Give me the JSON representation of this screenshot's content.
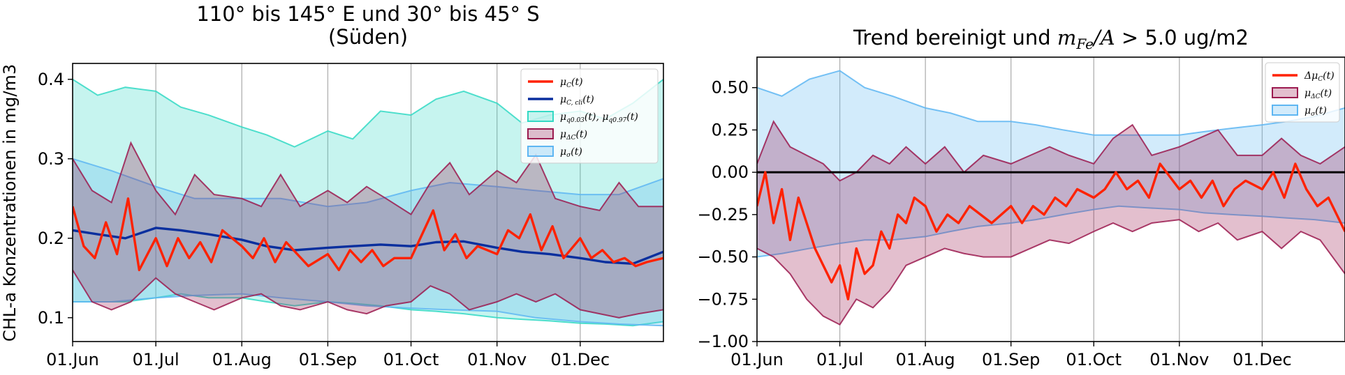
{
  "chart_data": [
    {
      "type": "line",
      "title_line1": "110° bis 145° E und 30° bis 45° S",
      "title_line2": "(Süden)",
      "ylabel": "CHL-a Konzentrationen in mg/m3",
      "xlabel": "",
      "x_start": "2019-06-01",
      "x_end": "2019-12-31",
      "ylim": [
        0.07,
        0.42
      ],
      "yticks": [
        0.1,
        0.2,
        0.3,
        0.4
      ],
      "ytick_labels": [
        "0.1",
        "0.2",
        "0.3",
        "0.4"
      ],
      "xticks": [
        "2019-06-01",
        "2019-07-01",
        "2019-08-01",
        "2019-09-01",
        "2019-10-01",
        "2019-11-01",
        "2019-12-01"
      ],
      "xtick_labels": [
        "01.Jun",
        "01.Jul",
        "01.Aug",
        "01.Sep",
        "01.Oct",
        "01.Nov",
        "01.Dec"
      ],
      "grid": "x",
      "legend_placement": "top-right",
      "legend": [
        {
          "main": "μ",
          "sub": "C",
          "tail": "(t)",
          "kind": "line",
          "color": "#ff2200"
        },
        {
          "main": "μ",
          "sub": "C, cli",
          "tail": "(t)",
          "kind": "line",
          "color": "#0a2f9e"
        },
        {
          "main": "μ",
          "sub": "q0.03",
          "tail": "(t), μ",
          "sub2": "q0.97",
          "tail2": "(t)",
          "kind": "patch",
          "color": "#33d9c4"
        },
        {
          "main": "μ",
          "sub": "ΔC",
          "tail": "(t)",
          "kind": "patch",
          "color": "#9b1a4f"
        },
        {
          "main": "μ",
          "sub": "σ",
          "tail": "(t)",
          "kind": "patch",
          "color": "#5eb6f2"
        }
      ],
      "series": [
        {
          "id": "q",
          "kind": "band",
          "color": "#33d9c4",
          "x": [
            "2019-06-01",
            "2019-06-10",
            "2019-06-20",
            "2019-07-01",
            "2019-07-10",
            "2019-07-20",
            "2019-08-01",
            "2019-08-10",
            "2019-08-20",
            "2019-09-01",
            "2019-09-10",
            "2019-09-20",
            "2019-10-01",
            "2019-10-10",
            "2019-10-20",
            "2019-11-01",
            "2019-11-10",
            "2019-11-20",
            "2019-12-01",
            "2019-12-10",
            "2019-12-20",
            "2019-12-31"
          ],
          "lower": [
            0.12,
            0.12,
            0.12,
            0.125,
            0.13,
            0.125,
            0.125,
            0.12,
            0.115,
            0.12,
            0.118,
            0.115,
            0.11,
            0.108,
            0.105,
            0.1,
            0.098,
            0.096,
            0.093,
            0.092,
            0.09,
            0.095
          ],
          "upper": [
            0.4,
            0.38,
            0.39,
            0.385,
            0.365,
            0.355,
            0.34,
            0.33,
            0.315,
            0.335,
            0.325,
            0.36,
            0.355,
            0.375,
            0.385,
            0.37,
            0.345,
            0.355,
            0.36,
            0.35,
            0.37,
            0.4
          ]
        },
        {
          "id": "sigma",
          "kind": "band",
          "color": "#5eb6f2",
          "x": [
            "2019-06-01",
            "2019-06-15",
            "2019-07-01",
            "2019-07-15",
            "2019-08-01",
            "2019-08-15",
            "2019-09-01",
            "2019-09-15",
            "2019-10-01",
            "2019-10-15",
            "2019-11-01",
            "2019-11-15",
            "2019-12-01",
            "2019-12-15",
            "2019-12-31"
          ],
          "lower": [
            0.12,
            0.12,
            0.125,
            0.128,
            0.13,
            0.125,
            0.12,
            0.115,
            0.112,
            0.11,
            0.108,
            0.1,
            0.095,
            0.092,
            0.09
          ],
          "upper": [
            0.3,
            0.285,
            0.265,
            0.25,
            0.25,
            0.25,
            0.24,
            0.245,
            0.26,
            0.27,
            0.265,
            0.26,
            0.255,
            0.255,
            0.275
          ]
        },
        {
          "id": "dc",
          "kind": "band",
          "color": "#9b1a4f",
          "x": [
            "2019-06-01",
            "2019-06-08",
            "2019-06-15",
            "2019-06-22",
            "2019-07-01",
            "2019-07-08",
            "2019-07-15",
            "2019-07-22",
            "2019-08-01",
            "2019-08-08",
            "2019-08-15",
            "2019-08-22",
            "2019-09-01",
            "2019-09-08",
            "2019-09-15",
            "2019-09-22",
            "2019-10-01",
            "2019-10-08",
            "2019-10-15",
            "2019-10-22",
            "2019-11-01",
            "2019-11-08",
            "2019-11-15",
            "2019-11-22",
            "2019-12-01",
            "2019-12-08",
            "2019-12-15",
            "2019-12-22",
            "2019-12-31"
          ],
          "lower": [
            0.16,
            0.12,
            0.11,
            0.12,
            0.15,
            0.13,
            0.12,
            0.11,
            0.125,
            0.13,
            0.115,
            0.11,
            0.12,
            0.11,
            0.105,
            0.115,
            0.12,
            0.14,
            0.13,
            0.11,
            0.12,
            0.13,
            0.12,
            0.13,
            0.11,
            0.105,
            0.1,
            0.105,
            0.11
          ],
          "upper": [
            0.3,
            0.26,
            0.245,
            0.32,
            0.26,
            0.23,
            0.28,
            0.255,
            0.25,
            0.24,
            0.28,
            0.24,
            0.26,
            0.245,
            0.265,
            0.25,
            0.23,
            0.27,
            0.295,
            0.255,
            0.285,
            0.27,
            0.305,
            0.25,
            0.24,
            0.235,
            0.27,
            0.24,
            0.24
          ]
        },
        {
          "id": "mu_cli",
          "kind": "line",
          "color": "#0a2f9e",
          "x": [
            "2019-06-01",
            "2019-06-10",
            "2019-06-20",
            "2019-07-01",
            "2019-07-10",
            "2019-07-20",
            "2019-08-01",
            "2019-08-10",
            "2019-08-20",
            "2019-09-01",
            "2019-09-10",
            "2019-09-20",
            "2019-10-01",
            "2019-10-10",
            "2019-10-20",
            "2019-11-01",
            "2019-11-10",
            "2019-11-20",
            "2019-12-01",
            "2019-12-10",
            "2019-12-20",
            "2019-12-31"
          ],
          "y": [
            0.21,
            0.205,
            0.2,
            0.213,
            0.21,
            0.205,
            0.198,
            0.19,
            0.185,
            0.188,
            0.19,
            0.192,
            0.19,
            0.195,
            0.196,
            0.188,
            0.183,
            0.18,
            0.175,
            0.17,
            0.168,
            0.183
          ]
        },
        {
          "id": "mu_c",
          "kind": "line",
          "color": "#ff2200",
          "x": [
            "2019-06-01",
            "2019-06-05",
            "2019-06-09",
            "2019-06-13",
            "2019-06-17",
            "2019-06-21",
            "2019-06-25",
            "2019-07-01",
            "2019-07-05",
            "2019-07-09",
            "2019-07-13",
            "2019-07-17",
            "2019-07-21",
            "2019-07-25",
            "2019-08-01",
            "2019-08-05",
            "2019-08-09",
            "2019-08-13",
            "2019-08-17",
            "2019-08-21",
            "2019-08-25",
            "2019-09-01",
            "2019-09-05",
            "2019-09-09",
            "2019-09-13",
            "2019-09-17",
            "2019-09-21",
            "2019-09-25",
            "2019-10-01",
            "2019-10-05",
            "2019-10-09",
            "2019-10-13",
            "2019-10-17",
            "2019-10-21",
            "2019-10-25",
            "2019-11-01",
            "2019-11-05",
            "2019-11-09",
            "2019-11-13",
            "2019-11-17",
            "2019-11-21",
            "2019-11-25",
            "2019-12-01",
            "2019-12-05",
            "2019-12-09",
            "2019-12-13",
            "2019-12-17",
            "2019-12-21",
            "2019-12-25",
            "2019-12-31"
          ],
          "y": [
            0.24,
            0.19,
            0.175,
            0.22,
            0.18,
            0.25,
            0.16,
            0.2,
            0.165,
            0.2,
            0.175,
            0.195,
            0.17,
            0.21,
            0.19,
            0.175,
            0.2,
            0.17,
            0.195,
            0.18,
            0.165,
            0.18,
            0.16,
            0.185,
            0.17,
            0.185,
            0.165,
            0.175,
            0.175,
            0.205,
            0.235,
            0.185,
            0.205,
            0.175,
            0.19,
            0.18,
            0.21,
            0.2,
            0.23,
            0.185,
            0.215,
            0.175,
            0.2,
            0.175,
            0.185,
            0.17,
            0.175,
            0.165,
            0.17,
            0.175
          ]
        }
      ]
    },
    {
      "type": "line",
      "title_pre": "Trend bereinigt und ",
      "title_m": "m",
      "title_m_sub": "Fe",
      "title_a": "/A",
      "title_post": " > 5.0 ug/m2",
      "xlabel": "",
      "ylabel": "",
      "x_start": "2019-06-01",
      "x_end": "2019-12-31",
      "ylim": [
        -1.0,
        0.68
      ],
      "yticks": [
        -1.0,
        -0.75,
        -0.5,
        -0.25,
        0.0,
        0.25,
        0.5
      ],
      "ytick_labels": [
        "−1.00",
        "−0.75",
        "−0.50",
        "−0.25",
        "0.00",
        "0.25",
        "0.50"
      ],
      "xticks": [
        "2019-06-01",
        "2019-07-01",
        "2019-08-01",
        "2019-09-01",
        "2019-10-01",
        "2019-11-01",
        "2019-12-01"
      ],
      "xtick_labels": [
        "01.Jun",
        "01.Jul",
        "01.Aug",
        "01.Sep",
        "01.Oct",
        "01.Nov",
        "01.Dec"
      ],
      "grid": "x",
      "zero_line": true,
      "legend_placement": "top-right",
      "legend": [
        {
          "main": "Δμ",
          "sub": "C",
          "tail": "(t)",
          "kind": "line",
          "color": "#ff2200"
        },
        {
          "main": "μ",
          "sub": "ΔC",
          "tail": "(t)",
          "kind": "patch",
          "color": "#9b1a4f"
        },
        {
          "main": "μ",
          "sub": "σ",
          "tail": "(t)",
          "kind": "patch",
          "color": "#5eb6f2"
        }
      ],
      "series": [
        {
          "id": "sigma",
          "kind": "band",
          "color": "#5eb6f2",
          "x": [
            "2019-06-01",
            "2019-06-10",
            "2019-06-20",
            "2019-07-01",
            "2019-07-10",
            "2019-07-20",
            "2019-08-01",
            "2019-08-10",
            "2019-08-20",
            "2019-09-01",
            "2019-09-10",
            "2019-09-20",
            "2019-10-01",
            "2019-10-10",
            "2019-10-20",
            "2019-11-01",
            "2019-11-10",
            "2019-11-20",
            "2019-12-01",
            "2019-12-10",
            "2019-12-20",
            "2019-12-31"
          ],
          "lower": [
            -0.5,
            -0.48,
            -0.45,
            -0.42,
            -0.4,
            -0.4,
            -0.38,
            -0.35,
            -0.32,
            -0.3,
            -0.28,
            -0.25,
            -0.22,
            -0.2,
            -0.21,
            -0.22,
            -0.24,
            -0.25,
            -0.26,
            -0.27,
            -0.28,
            -0.3
          ],
          "upper": [
            0.5,
            0.45,
            0.55,
            0.6,
            0.5,
            0.45,
            0.38,
            0.35,
            0.3,
            0.3,
            0.28,
            0.25,
            0.22,
            0.22,
            0.22,
            0.22,
            0.24,
            0.26,
            0.28,
            0.3,
            0.33,
            0.38
          ]
        },
        {
          "id": "dc",
          "kind": "band",
          "color": "#9b1a4f",
          "x": [
            "2019-06-01",
            "2019-06-07",
            "2019-06-13",
            "2019-06-19",
            "2019-06-25",
            "2019-07-01",
            "2019-07-07",
            "2019-07-13",
            "2019-07-19",
            "2019-07-25",
            "2019-08-01",
            "2019-08-08",
            "2019-08-15",
            "2019-08-22",
            "2019-09-01",
            "2019-09-08",
            "2019-09-15",
            "2019-09-22",
            "2019-10-01",
            "2019-10-08",
            "2019-10-15",
            "2019-10-22",
            "2019-11-01",
            "2019-11-08",
            "2019-11-15",
            "2019-11-22",
            "2019-12-01",
            "2019-12-08",
            "2019-12-15",
            "2019-12-22",
            "2019-12-31"
          ],
          "lower": [
            -0.45,
            -0.5,
            -0.6,
            -0.75,
            -0.85,
            -0.9,
            -0.75,
            -0.8,
            -0.7,
            -0.55,
            -0.5,
            -0.45,
            -0.48,
            -0.5,
            -0.5,
            -0.45,
            -0.4,
            -0.42,
            -0.35,
            -0.3,
            -0.35,
            -0.3,
            -0.28,
            -0.35,
            -0.3,
            -0.4,
            -0.35,
            -0.45,
            -0.35,
            -0.4,
            -0.6
          ],
          "upper": [
            0.05,
            0.3,
            0.15,
            0.1,
            0.05,
            -0.05,
            0.0,
            0.1,
            0.05,
            0.15,
            0.05,
            0.15,
            0.0,
            0.1,
            0.05,
            0.1,
            0.15,
            0.1,
            0.05,
            0.2,
            0.28,
            0.1,
            0.15,
            0.2,
            0.25,
            0.1,
            0.1,
            0.2,
            0.1,
            0.05,
            0.15
          ]
        },
        {
          "id": "dmu",
          "kind": "line",
          "color": "#ff2200",
          "x": [
            "2019-06-01",
            "2019-06-04",
            "2019-06-07",
            "2019-06-10",
            "2019-06-13",
            "2019-06-16",
            "2019-06-19",
            "2019-06-22",
            "2019-06-25",
            "2019-06-28",
            "2019-07-01",
            "2019-07-04",
            "2019-07-07",
            "2019-07-10",
            "2019-07-13",
            "2019-07-16",
            "2019-07-19",
            "2019-07-22",
            "2019-07-25",
            "2019-07-28",
            "2019-08-01",
            "2019-08-05",
            "2019-08-09",
            "2019-08-13",
            "2019-08-17",
            "2019-08-21",
            "2019-08-25",
            "2019-09-01",
            "2019-09-05",
            "2019-09-09",
            "2019-09-13",
            "2019-09-17",
            "2019-09-21",
            "2019-09-25",
            "2019-10-01",
            "2019-10-05",
            "2019-10-09",
            "2019-10-13",
            "2019-10-17",
            "2019-10-21",
            "2019-10-25",
            "2019-11-01",
            "2019-11-05",
            "2019-11-09",
            "2019-11-13",
            "2019-11-17",
            "2019-11-21",
            "2019-11-25",
            "2019-12-01",
            "2019-12-05",
            "2019-12-09",
            "2019-12-13",
            "2019-12-17",
            "2019-12-21",
            "2019-12-25",
            "2019-12-31"
          ],
          "y": [
            -0.2,
            0.0,
            -0.3,
            -0.1,
            -0.4,
            -0.15,
            -0.3,
            -0.45,
            -0.55,
            -0.65,
            -0.55,
            -0.75,
            -0.45,
            -0.6,
            -0.55,
            -0.35,
            -0.45,
            -0.25,
            -0.3,
            -0.15,
            -0.2,
            -0.35,
            -0.25,
            -0.3,
            -0.2,
            -0.25,
            -0.3,
            -0.2,
            -0.3,
            -0.2,
            -0.25,
            -0.15,
            -0.2,
            -0.1,
            -0.15,
            -0.1,
            0.0,
            -0.1,
            -0.05,
            -0.15,
            0.05,
            -0.1,
            -0.05,
            -0.15,
            -0.05,
            -0.2,
            -0.1,
            -0.05,
            -0.1,
            0.0,
            -0.15,
            0.05,
            -0.1,
            -0.2,
            -0.15,
            -0.35
          ]
        }
      ]
    }
  ]
}
